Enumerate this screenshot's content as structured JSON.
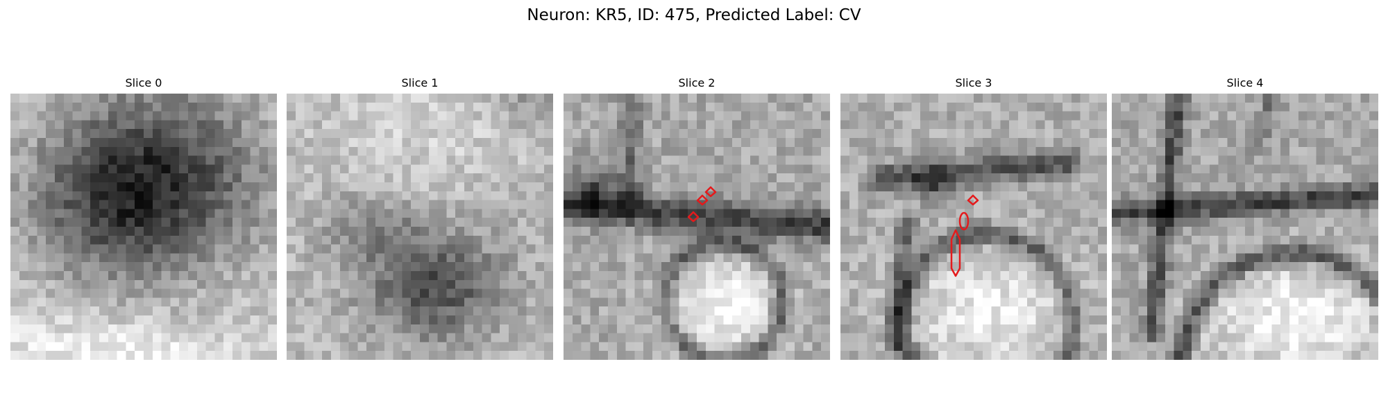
{
  "figure": {
    "title": "Neuron: KR5, ID: 475, Predicted Label: CV"
  },
  "colors": {
    "contour": "#e41a1c",
    "background": "#ffffff",
    "colormap": "gray"
  },
  "grid_size": 30,
  "slices": [
    {
      "title": "Slice 0",
      "texture": "dark cell body filling the upper two thirds, bright cytoplasm along bottom edge",
      "contours": []
    },
    {
      "title": "Slice 1",
      "texture": "bright upper region with darker diffuse blob in lower middle",
      "contours": []
    },
    {
      "title": "Slice 2",
      "texture": "dark membranes crossing the center, bright round region in lower middle",
      "contours": [
        {
          "shape": "diamond"
        },
        {
          "shape": "diamond"
        },
        {
          "shape": "diamond"
        }
      ]
    },
    {
      "title": "Slice 3",
      "texture": "dark curved membrane with bright round region in lower half",
      "contours": [
        {
          "shape": "diamond"
        },
        {
          "shape": "ellipse"
        },
        {
          "shape": "elongated hexagon"
        }
      ]
    },
    {
      "title": "Slice 4",
      "texture": "dark curved membrane arcs with large bright round region at bottom",
      "contours": []
    }
  ]
}
